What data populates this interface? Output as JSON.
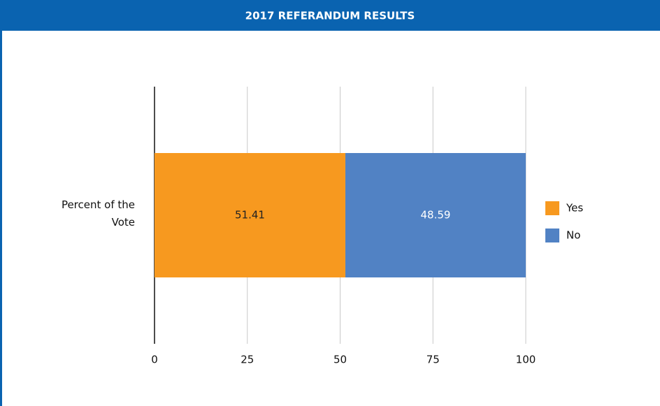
{
  "chart_data": {
    "type": "bar",
    "orientation": "horizontal",
    "stacked": true,
    "title": "2017 REFERANDUM RESULTS",
    "categories": [
      "Percent of the Vote"
    ],
    "series": [
      {
        "name": "Yes",
        "color": "#f7991f",
        "label_color": "#222222",
        "values": [
          51.41
        ]
      },
      {
        "name": "No",
        "color": "#5182c4",
        "label_color": "#ffffff",
        "values": [
          48.59
        ]
      }
    ],
    "xlim": [
      0,
      100
    ],
    "xticks": [
      0,
      25,
      50,
      75,
      100
    ],
    "grid": true,
    "legend": "right"
  }
}
